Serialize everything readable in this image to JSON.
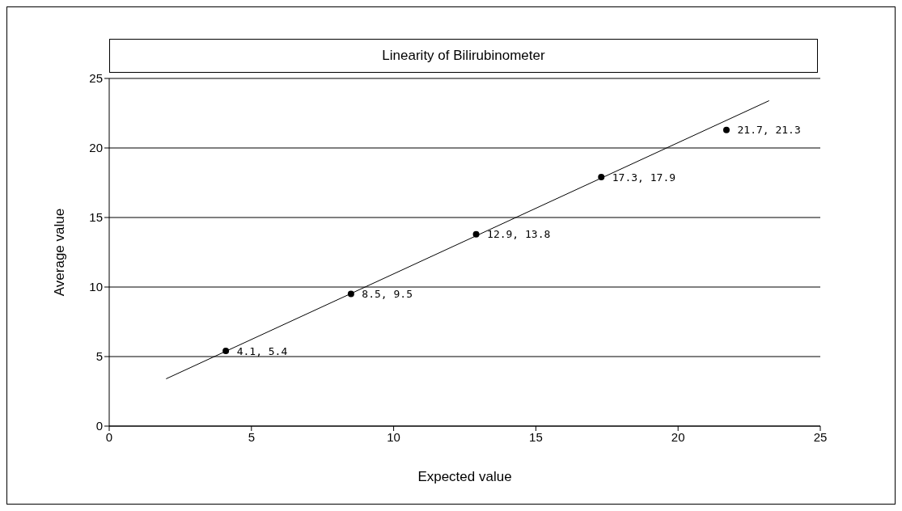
{
  "chart_data": {
    "type": "scatter",
    "title": "Linearity of Bilirubinometer",
    "xlabel": "Expected value",
    "ylabel": "Average value",
    "xlim": [
      0,
      25
    ],
    "xticks": [
      0,
      5,
      10,
      15,
      20,
      25
    ],
    "ylim": [
      0,
      25
    ],
    "yticks": [
      0,
      5,
      10,
      15,
      20,
      25
    ],
    "grid": "y",
    "series": [
      {
        "marker": "circle",
        "color": "#000000",
        "x": [
          4.1,
          8.5,
          12.9,
          17.3,
          21.7
        ],
        "values": [
          5.4,
          9.5,
          13.8,
          17.9,
          21.3
        ],
        "value_labels": [
          "4.1, 5.4",
          "8.5, 9.5",
          "12.9, 13.8",
          "17.3, 17.9",
          "21.7, 21.3"
        ]
      },
      {
        "type": "line",
        "marker": "none",
        "color": "#000000",
        "x": [
          2,
          23.2
        ],
        "values": [
          3.4,
          23.4
        ]
      }
    ]
  }
}
